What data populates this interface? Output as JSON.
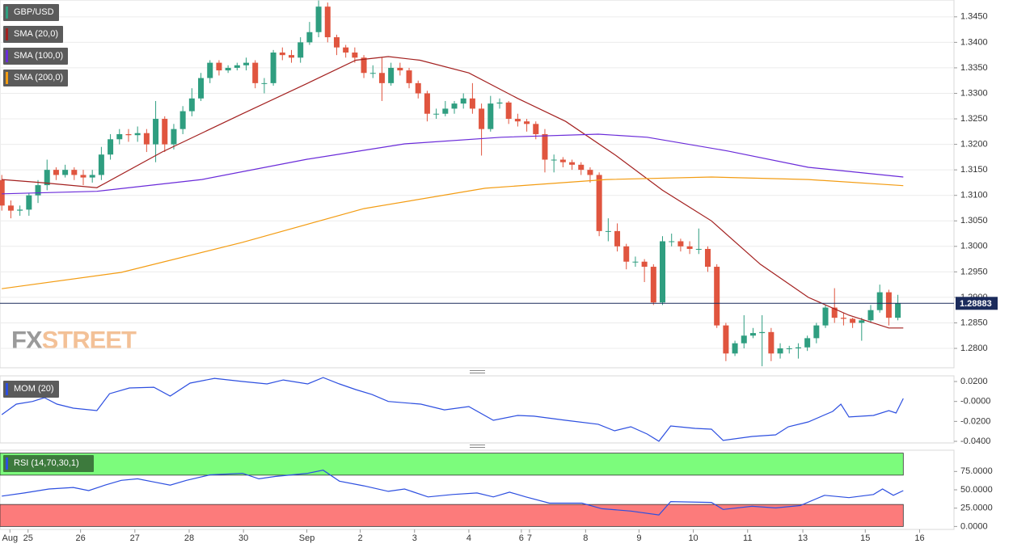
{
  "chart_data": [
    {
      "type": "candlestick",
      "name": "GBP/USD",
      "up_color": "#2f9e80",
      "down_color": "#e0553f",
      "grid": true,
      "last_price": 1.28883,
      "last_price_color": "#1b2b5c",
      "watermark": {
        "first": "FX",
        "second": "STREET"
      },
      "xlim": [
        -0.2,
        105.2
      ],
      "ylim": [
        1.2762,
        1.3483
      ],
      "yticks": [
        {
          "value": 1.28,
          "label": "1.2800"
        },
        {
          "value": 1.285,
          "label": "1.2850"
        },
        {
          "value": 1.29,
          "label": "1.2900"
        },
        {
          "value": 1.295,
          "label": "1.2950"
        },
        {
          "value": 1.3,
          "label": "1.3000"
        },
        {
          "value": 1.305,
          "label": "1.3050"
        },
        {
          "value": 1.31,
          "label": "1.3100"
        },
        {
          "value": 1.315,
          "label": "1.3150"
        },
        {
          "value": 1.32,
          "label": "1.3200"
        },
        {
          "value": 1.325,
          "label": "1.3250"
        },
        {
          "value": 1.33,
          "label": "1.3300"
        },
        {
          "value": 1.335,
          "label": "1.3350"
        },
        {
          "value": 1.34,
          "label": "1.3400"
        },
        {
          "value": 1.345,
          "label": "1.3450"
        }
      ],
      "open": [
        1.313,
        1.308,
        1.307,
        1.3072,
        1.31,
        1.312,
        1.315,
        1.314,
        1.315,
        1.314,
        1.3135,
        1.314,
        1.318,
        1.321,
        1.322,
        1.3218,
        1.3222,
        1.32,
        1.325,
        1.32,
        1.323,
        1.3265,
        1.329,
        1.333,
        1.336,
        1.3345,
        1.335,
        1.3355,
        1.336,
        1.332,
        1.332,
        1.338,
        1.3375,
        1.337,
        1.34,
        1.342,
        1.347,
        1.341,
        1.339,
        1.338,
        1.337,
        1.334,
        1.334,
        1.332,
        1.335,
        1.3345,
        1.332,
        1.33,
        1.326,
        1.326,
        1.327,
        1.328,
        1.329,
        1.327,
        1.323,
        1.328,
        1.3282,
        1.325,
        1.3245,
        1.324,
        1.322,
        1.317,
        1.317,
        1.3165,
        1.316,
        1.315,
        1.314,
        1.303,
        1.303,
        1.3,
        1.297,
        1.297,
        1.296,
        1.289,
        1.301,
        1.301,
        1.3,
        1.2995,
        1.2995,
        1.296,
        1.2845,
        1.279,
        1.281,
        1.2825,
        1.283,
        1.2832,
        1.279,
        1.28,
        1.28,
        1.2802,
        1.282,
        1.2845,
        1.288,
        1.286,
        1.2858,
        1.285,
        1.2855,
        1.2875,
        1.291,
        1.286
      ],
      "high": [
        1.314,
        1.309,
        1.308,
        1.3105,
        1.313,
        1.317,
        1.3155,
        1.316,
        1.3155,
        1.315,
        1.315,
        1.3195,
        1.322,
        1.323,
        1.323,
        1.3235,
        1.323,
        1.3285,
        1.3255,
        1.324,
        1.3275,
        1.331,
        1.334,
        1.3365,
        1.3365,
        1.3355,
        1.336,
        1.337,
        1.3365,
        1.333,
        1.3385,
        1.339,
        1.3385,
        1.341,
        1.344,
        1.3482,
        1.3478,
        1.3415,
        1.3395,
        1.339,
        1.3375,
        1.3355,
        1.337,
        1.336,
        1.336,
        1.335,
        1.3325,
        1.3305,
        1.327,
        1.3285,
        1.3285,
        1.33,
        1.332,
        1.328,
        1.3295,
        1.329,
        1.3285,
        1.326,
        1.325,
        1.3245,
        1.323,
        1.318,
        1.3175,
        1.317,
        1.3165,
        1.3155,
        1.3145,
        1.3055,
        1.3045,
        1.3005,
        1.298,
        1.2975,
        1.2965,
        1.302,
        1.3025,
        1.3015,
        1.301,
        1.3035,
        1.3,
        1.2965,
        1.285,
        1.2815,
        1.2865,
        1.284,
        1.2865,
        1.284,
        1.281,
        1.2805,
        1.281,
        1.2825,
        1.285,
        1.2885,
        1.2918,
        1.287,
        1.286,
        1.286,
        1.2885,
        1.2925,
        1.2915,
        1.2905
      ],
      "low": [
        1.307,
        1.3055,
        1.306,
        1.306,
        1.3085,
        1.311,
        1.313,
        1.3135,
        1.313,
        1.312,
        1.3125,
        1.313,
        1.317,
        1.32,
        1.3205,
        1.3205,
        1.3185,
        1.3165,
        1.3185,
        1.319,
        1.322,
        1.3255,
        1.3285,
        1.332,
        1.3335,
        1.334,
        1.3345,
        1.3345,
        1.331,
        1.33,
        1.3315,
        1.3365,
        1.336,
        1.336,
        1.3395,
        1.341,
        1.34,
        1.3375,
        1.337,
        1.336,
        1.333,
        1.333,
        1.3285,
        1.3315,
        1.3335,
        1.331,
        1.329,
        1.3245,
        1.325,
        1.3255,
        1.326,
        1.327,
        1.326,
        1.3178,
        1.3225,
        1.327,
        1.324,
        1.3235,
        1.3225,
        1.321,
        1.3145,
        1.3145,
        1.3155,
        1.315,
        1.314,
        1.3125,
        1.302,
        1.301,
        1.299,
        1.2955,
        1.296,
        1.293,
        1.2885,
        1.2885,
        1.3,
        1.299,
        1.2985,
        1.2985,
        1.295,
        1.284,
        1.2775,
        1.2785,
        1.28,
        1.282,
        1.2765,
        1.2775,
        1.278,
        1.279,
        1.278,
        1.2795,
        1.281,
        1.284,
        1.285,
        1.2845,
        1.284,
        1.2815,
        1.285,
        1.287,
        1.2845,
        1.2855
      ],
      "close": [
        1.308,
        1.307,
        1.3072,
        1.31,
        1.312,
        1.315,
        1.314,
        1.315,
        1.314,
        1.3135,
        1.314,
        1.318,
        1.321,
        1.322,
        1.3218,
        1.3222,
        1.32,
        1.325,
        1.32,
        1.323,
        1.3265,
        1.329,
        1.333,
        1.336,
        1.3345,
        1.335,
        1.3355,
        1.336,
        1.332,
        1.332,
        1.338,
        1.3375,
        1.337,
        1.34,
        1.342,
        1.347,
        1.341,
        1.339,
        1.338,
        1.337,
        1.334,
        1.334,
        1.332,
        1.335,
        1.3345,
        1.332,
        1.33,
        1.326,
        1.326,
        1.327,
        1.328,
        1.329,
        1.327,
        1.323,
        1.328,
        1.3282,
        1.325,
        1.3245,
        1.324,
        1.322,
        1.317,
        1.317,
        1.3165,
        1.316,
        1.315,
        1.314,
        1.303,
        1.303,
        1.3,
        1.297,
        1.297,
        1.296,
        1.289,
        1.301,
        1.301,
        1.3,
        1.2995,
        1.2995,
        1.296,
        1.2845,
        1.279,
        1.281,
        1.2825,
        1.283,
        1.2832,
        1.279,
        1.28,
        1.28,
        1.2802,
        1.282,
        1.2845,
        1.288,
        1.286,
        1.2858,
        1.285,
        1.2855,
        1.2875,
        1.291,
        1.286,
        1.2888
      ],
      "series": [
        {
          "name": "SMA (20,0)",
          "color": "#a3201f",
          "x": [
            0,
            4.3,
            10.5,
            17.7,
            26.6,
            33.8,
            39.1,
            42.7,
            46.2,
            51.6,
            57,
            62.3,
            67.7,
            73,
            78.4,
            83.8,
            89.1,
            93.6,
            98,
            99.6
          ],
          "values": [
            1.3131,
            1.3125,
            1.3115,
            1.3185,
            1.326,
            1.332,
            1.3365,
            1.3372,
            1.3365,
            1.334,
            1.329,
            1.3245,
            1.318,
            1.311,
            1.305,
            1.2965,
            1.29,
            1.2865,
            1.284,
            1.284
          ]
        },
        {
          "name": "SMA (100,0)",
          "color": "#6a2bd9",
          "x": [
            0,
            10.5,
            22.1,
            33.8,
            44.5,
            55.2,
            65.9,
            71.3,
            80.2,
            89.1,
            99.6
          ],
          "values": [
            1.3103,
            1.3108,
            1.3131,
            1.3171,
            1.3201,
            1.3214,
            1.322,
            1.3214,
            1.3187,
            1.3155,
            1.3136
          ]
        },
        {
          "name": "SMA (200,0)",
          "color": "#f39c12",
          "x": [
            0,
            13.2,
            26.6,
            40,
            53.4,
            66.8,
            78.4,
            89.1,
            99.6
          ],
          "values": [
            1.2917,
            1.2949,
            1.3008,
            1.3074,
            1.3114,
            1.3131,
            1.3136,
            1.3131,
            1.3119
          ]
        }
      ]
    },
    {
      "type": "line",
      "xlim": [
        -0.2,
        105.2
      ],
      "ylim": [
        -0.0416,
        0.0257
      ],
      "yticks": [
        {
          "value": -0.04,
          "label": "-0.0400"
        },
        {
          "value": -0.02,
          "label": "-0.0200"
        },
        {
          "value": 0,
          "label": "-0.0000"
        },
        {
          "value": 0.02,
          "label": "0.0200"
        }
      ],
      "series": [
        {
          "name": "MOM (20)",
          "color": "#2d4fe0",
          "x": [
            0,
            1.6,
            3.4,
            4.7,
            6.1,
            7.9,
            10.5,
            11.9,
            14.1,
            16.8,
            18.6,
            20.8,
            23.5,
            26.6,
            29.3,
            31.1,
            33.8,
            35.5,
            37.3,
            39.1,
            40.9,
            42.7,
            46.3,
            48.9,
            51.6,
            54.3,
            57,
            58.8,
            62.3,
            65.9,
            67.7,
            69.5,
            71.3,
            72.6,
            73.9,
            76.6,
            78.4,
            79.7,
            82.9,
            85.5,
            86.9,
            89.1,
            91.8,
            92.7,
            93.6,
            96.3,
            98,
            98.8,
            99.6
          ],
          "values": [
            -0.0132,
            -0.0027,
            0,
            0.0038,
            -0.0027,
            -0.0067,
            -0.0092,
            0.0078,
            0.0135,
            0.0143,
            0.0054,
            0.0184,
            0.0232,
            0.02,
            0.0176,
            0.0216,
            0.0176,
            0.024,
            0.0176,
            0.0119,
            0.007,
            0,
            -0.0027,
            -0.0084,
            -0.0051,
            -0.0189,
            -0.014,
            -0.0148,
            -0.0189,
            -0.0229,
            -0.0294,
            -0.0254,
            -0.0327,
            -0.0399,
            -0.0246,
            -0.027,
            -0.0278,
            -0.0391,
            -0.0351,
            -0.0335,
            -0.0254,
            -0.0205,
            -0.01,
            -0.0027,
            -0.0156,
            -0.014,
            -0.0092,
            -0.0116,
            0.003
          ]
        }
      ]
    },
    {
      "type": "line",
      "xlim": [
        -0.2,
        105.2
      ],
      "ylim": [
        -4,
        104
      ],
      "yticks": [
        {
          "value": 0,
          "label": "0.0000"
        },
        {
          "value": 25,
          "label": "25.0000"
        },
        {
          "value": 50,
          "label": "50.0000"
        },
        {
          "value": 75,
          "label": "75.0000"
        }
      ],
      "bands": [
        {
          "from": 70,
          "to": 100,
          "color": "#7cfc7c"
        },
        {
          "from": 0,
          "to": 30,
          "color": "#fc7b7b"
        }
      ],
      "xticks": [
        {
          "value": 0.9,
          "label": "Aug"
        },
        {
          "value": 2.9,
          "label": "25"
        },
        {
          "value": 8.7,
          "label": "26"
        },
        {
          "value": 14.7,
          "label": "27"
        },
        {
          "value": 20.7,
          "label": "28"
        },
        {
          "value": 26.7,
          "label": "30"
        },
        {
          "value": 33.7,
          "label": "Sep"
        },
        {
          "value": 39.6,
          "label": "2"
        },
        {
          "value": 45.6,
          "label": "3"
        },
        {
          "value": 51.6,
          "label": "4"
        },
        {
          "value": 57.4,
          "label": "6"
        },
        {
          "value": 58.3,
          "label": "7"
        },
        {
          "value": 64.5,
          "label": "8"
        },
        {
          "value": 70.4,
          "label": "9"
        },
        {
          "value": 76.4,
          "label": "10"
        },
        {
          "value": 82.4,
          "label": "11"
        },
        {
          "value": 88.5,
          "label": "13"
        },
        {
          "value": 95.4,
          "label": "15"
        },
        {
          "value": 101.4,
          "label": "16"
        }
      ],
      "series": [
        {
          "name": "RSI (14,70,30,1)",
          "color": "#2d4fe0",
          "x": [
            0,
            2.5,
            5.2,
            7.9,
            9.6,
            11.4,
            13.2,
            15,
            16.8,
            18.6,
            20.4,
            23,
            26.6,
            28.4,
            30.2,
            33.8,
            35.5,
            37.3,
            40,
            42.7,
            44.5,
            47.1,
            49.8,
            52.5,
            54.3,
            56.1,
            57.9,
            60.5,
            64.1,
            66.3,
            69.5,
            72.6,
            73.9,
            78.4,
            79.7,
            82.9,
            85.5,
            88.2,
            90.9,
            93.6,
            96.3,
            97.3,
            98.5,
            99.6
          ],
          "values": [
            41.4,
            45.7,
            51.1,
            53.2,
            48.9,
            56.4,
            62.9,
            65.0,
            60.7,
            56.4,
            62.9,
            70.4,
            72.5,
            65.0,
            68.2,
            72.5,
            76.8,
            61.8,
            55.4,
            47.9,
            51.1,
            40.3,
            43.6,
            45.7,
            40.3,
            46.8,
            40.3,
            31.8,
            31.8,
            24.2,
            21.0,
            15.7,
            33.9,
            32.8,
            23.2,
            27.5,
            25.3,
            28.5,
            42.5,
            39.3,
            43.6,
            51.1,
            42.5,
            48.9
          ]
        }
      ]
    }
  ]
}
